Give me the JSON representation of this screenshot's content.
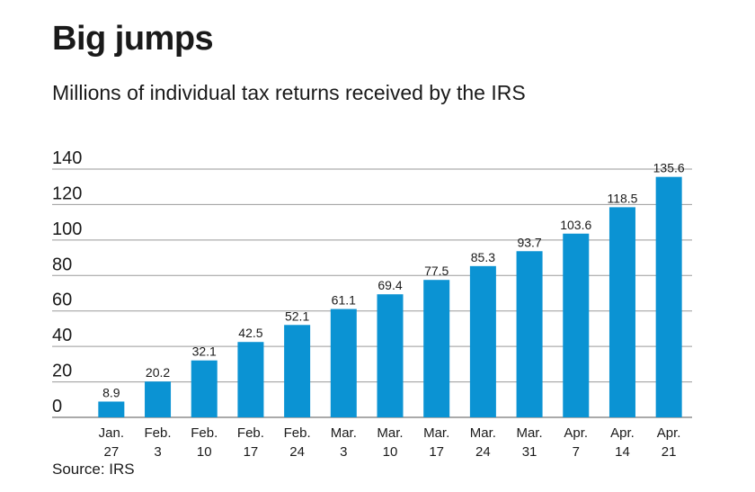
{
  "title": "Big jumps",
  "subtitle": "Millions of individual tax returns received by the IRS",
  "source": "Source: IRS",
  "bar_color": "#0b93d3",
  "chart_data": {
    "type": "bar",
    "title": "Big jumps",
    "subtitle": "Millions of individual tax returns received by the IRS",
    "categories": [
      [
        "Jan.",
        "27"
      ],
      [
        "Feb.",
        "3"
      ],
      [
        "Feb.",
        "10"
      ],
      [
        "Feb.",
        "17"
      ],
      [
        "Feb.",
        "24"
      ],
      [
        "Mar.",
        "3"
      ],
      [
        "Mar.",
        "10"
      ],
      [
        "Mar.",
        "17"
      ],
      [
        "Mar.",
        "24"
      ],
      [
        "Mar.",
        "31"
      ],
      [
        "Apr.",
        "7"
      ],
      [
        "Apr.",
        "14"
      ],
      [
        "Apr.",
        "21"
      ]
    ],
    "values": [
      8.9,
      20.2,
      32.1,
      42.5,
      52.1,
      61.1,
      69.4,
      77.5,
      85.3,
      93.7,
      103.6,
      118.5,
      135.6
    ],
    "data_labels": [
      "8.9",
      "20.2",
      "32.1",
      "42.5",
      "52.1",
      "61.1",
      "69.4",
      "77.5",
      "85.3",
      "93.7",
      "103.6",
      "118.5",
      "135.6"
    ],
    "yticks": [
      0,
      20,
      40,
      60,
      80,
      100,
      120,
      140
    ],
    "ylim": [
      0,
      140
    ],
    "grid": true,
    "legend": "none"
  }
}
